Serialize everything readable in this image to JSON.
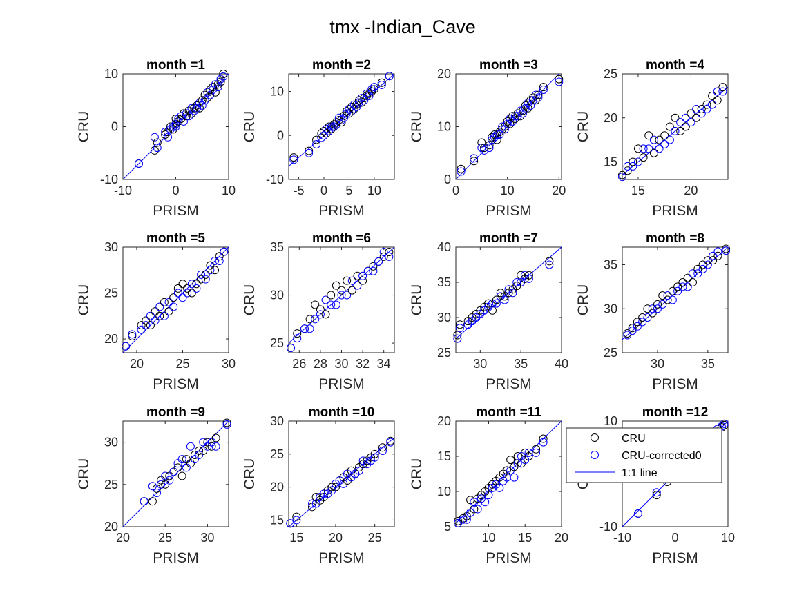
{
  "figure_title": "tmx -Indian_Cave",
  "xlabel": "PRISM",
  "ylabel": "CRU",
  "colors": {
    "cru": "#000000",
    "corrected": "#0000ff",
    "line": "#0000ff",
    "axes": "#262626"
  },
  "legend": {
    "placement": "overlapping month =12 panel, upper left",
    "entries": [
      {
        "label": "CRU",
        "marker": "open-circle",
        "color": "#000000"
      },
      {
        "label": "CRU-corrected0",
        "marker": "open-circle",
        "color": "#0000ff"
      },
      {
        "label": "1:1 line",
        "marker": "line",
        "color": "#0000ff"
      }
    ]
  },
  "chart_data": [
    {
      "type": "scatter",
      "title": "month =1",
      "xlim": [
        -10,
        10
      ],
      "ylim": [
        -10,
        10
      ],
      "xticks": [
        -10,
        0,
        10
      ],
      "yticks": [
        -10,
        0,
        10
      ],
      "x": [
        -7,
        -4,
        -3.5,
        -2,
        -1.5,
        -1,
        -0.5,
        0,
        0,
        0.5,
        1,
        1.5,
        2,
        2.5,
        3,
        3.5,
        4,
        4.5,
        5,
        5.5,
        6,
        6.5,
        7,
        7.5,
        8,
        8.5,
        9
      ],
      "cru": [
        -7,
        -4.5,
        -3,
        -1.5,
        -1,
        0,
        -0.5,
        0.5,
        1.5,
        1,
        1.5,
        2.5,
        2,
        3,
        2.5,
        3.5,
        4,
        3.5,
        5,
        6,
        5.5,
        7,
        7.5,
        6.5,
        8,
        8.5,
        10
      ],
      "corrected": [
        -7,
        -2,
        -4,
        -1,
        -2,
        -0.5,
        0,
        0,
        0.5,
        1.5,
        2,
        1,
        2.5,
        2,
        3.5,
        3,
        3.5,
        4.5,
        4,
        5,
        6.5,
        6,
        7,
        8,
        7.5,
        9,
        9.5
      ]
    },
    {
      "type": "scatter",
      "title": "month =2",
      "xlim": [
        -7,
        14
      ],
      "ylim": [
        -10,
        14
      ],
      "xticks": [
        -5,
        0,
        5,
        10
      ],
      "yticks": [
        -10,
        0,
        10
      ],
      "x": [
        -6,
        -3,
        -1.5,
        -0.5,
        0,
        0.5,
        1,
        1.5,
        2,
        2.5,
        3,
        3.5,
        4,
        4.5,
        5,
        5.5,
        6,
        6.5,
        7,
        7.5,
        8,
        8.5,
        9,
        9.5,
        10,
        11.5,
        13
      ],
      "cru": [
        -5,
        -3.5,
        -1,
        0.5,
        1,
        0.5,
        2,
        1.5,
        2.5,
        3,
        3.5,
        3,
        4.5,
        5.5,
        5,
        6.5,
        6,
        7,
        8,
        7.5,
        8.5,
        9,
        9.5,
        10,
        10.5,
        12,
        13.5
      ],
      "corrected": [
        -5.5,
        -4,
        -2,
        -0.5,
        0,
        1.5,
        1,
        2,
        2,
        2.5,
        4,
        3.5,
        4,
        5,
        6,
        5.5,
        7,
        6.5,
        7.5,
        8.5,
        8,
        9.5,
        9,
        10.5,
        11,
        11.5,
        13.5
      ]
    },
    {
      "type": "scatter",
      "title": "month =3",
      "xlim": [
        0,
        20.5
      ],
      "ylim": [
        0,
        20
      ],
      "xticks": [
        0,
        10,
        20
      ],
      "yticks": [
        0,
        10,
        20
      ],
      "x": [
        1,
        3.5,
        5,
        5.5,
        6.5,
        7,
        7.5,
        8,
        8.5,
        9,
        9.5,
        10,
        10.5,
        11,
        11.5,
        12,
        12.5,
        13,
        13.5,
        14,
        14.5,
        15,
        15.5,
        16,
        17,
        20
      ],
      "cru": [
        2,
        3.5,
        7,
        6,
        6.5,
        8,
        8.5,
        7.5,
        9,
        9.5,
        10,
        11,
        10.5,
        12,
        11.5,
        12.5,
        12,
        13,
        14,
        13.5,
        15,
        15.5,
        15,
        16,
        17.5,
        19
      ],
      "corrected": [
        1.5,
        4,
        6,
        5.5,
        6,
        7.5,
        8,
        8.5,
        8.5,
        10,
        9.5,
        10.5,
        11.5,
        11,
        12,
        12,
        13,
        12.5,
        13.5,
        14.5,
        14,
        15,
        16,
        15.5,
        17,
        18.5
      ]
    },
    {
      "type": "scatter",
      "title": "month =4",
      "xlim": [
        13.5,
        23.5
      ],
      "ylim": [
        13,
        25
      ],
      "xticks": [
        15,
        20
      ],
      "yticks": [
        15,
        20,
        25
      ],
      "x": [
        13.5,
        14,
        14.5,
        15,
        15.5,
        16,
        16.5,
        17,
        17.5,
        18,
        18.5,
        19,
        19.5,
        20,
        20.5,
        21,
        21.5,
        22,
        22.5,
        23
      ],
      "cru": [
        13.5,
        14,
        15,
        16.5,
        15.5,
        18,
        16,
        17.5,
        18,
        19,
        20,
        18.5,
        19,
        20.5,
        20,
        21,
        21.5,
        22.5,
        22,
        23.5
      ],
      "corrected": [
        13.3,
        14.5,
        14.5,
        15,
        16.5,
        16.5,
        17.5,
        16.5,
        17,
        17.5,
        18.5,
        19.5,
        20,
        19.5,
        21,
        20.5,
        21,
        21.5,
        23,
        23
      ]
    },
    {
      "type": "scatter",
      "title": "month =5",
      "xlim": [
        18.5,
        30
      ],
      "ylim": [
        18.5,
        30
      ],
      "xticks": [
        20,
        25,
        30
      ],
      "yticks": [
        20,
        25,
        30
      ],
      "x": [
        18.8,
        19.5,
        20.5,
        21,
        21.5,
        22,
        22.5,
        23,
        23.5,
        24,
        24.5,
        25,
        25.5,
        26,
        26.5,
        27,
        27.5,
        28,
        28.5,
        29,
        29.5
      ],
      "cru": [
        19.2,
        20.3,
        21.5,
        22,
        21.5,
        23,
        22.5,
        24,
        23,
        24.5,
        25.5,
        26,
        25.5,
        25,
        26,
        26.5,
        27,
        28,
        27.5,
        29,
        29.5
      ],
      "corrected": [
        19.2,
        20.5,
        21,
        21.5,
        22.5,
        22,
        23.5,
        22.5,
        24,
        23.5,
        25,
        24.5,
        25,
        26,
        25.5,
        27,
        26.5,
        27.5,
        28.5,
        28.5,
        29.5
      ]
    },
    {
      "type": "scatter",
      "title": "month =6",
      "xlim": [
        25,
        35
      ],
      "ylim": [
        24,
        35
      ],
      "xticks": [
        26,
        28,
        30,
        32,
        34
      ],
      "yticks": [
        25,
        30,
        35
      ],
      "x": [
        25.2,
        25.8,
        26.5,
        27,
        27.5,
        28,
        28.5,
        29,
        29.5,
        30,
        30.5,
        31,
        31.5,
        32,
        32.5,
        33,
        33.5,
        34,
        34.5
      ],
      "cru": [
        24.5,
        26,
        26.5,
        27.5,
        29,
        28.5,
        28,
        30,
        31,
        30.5,
        31.5,
        30.5,
        32,
        31.5,
        32.5,
        33,
        33.5,
        34,
        34.5
      ],
      "corrected": [
        24.5,
        25.5,
        26.5,
        26.5,
        27.5,
        28,
        29.5,
        29,
        29,
        30,
        30,
        31.5,
        31,
        32,
        32.5,
        32.5,
        33.5,
        34.5,
        34
      ]
    },
    {
      "type": "scatter",
      "title": "month =7",
      "xlim": [
        27,
        40
      ],
      "ylim": [
        25,
        40
      ],
      "xticks": [
        30,
        35,
        40
      ],
      "yticks": [
        25,
        30,
        35,
        40
      ],
      "x": [
        27.2,
        27.5,
        28.5,
        29,
        29.5,
        30,
        30.5,
        31,
        31.5,
        32,
        32.5,
        33,
        33.5,
        34,
        34.5,
        35,
        35.5,
        36,
        38.5
      ],
      "cru": [
        27.5,
        29,
        29.5,
        30,
        30.5,
        31,
        31.5,
        32,
        31,
        32.5,
        33.5,
        33,
        33.5,
        34,
        34.5,
        36,
        35.5,
        36,
        38
      ],
      "corrected": [
        27,
        28.5,
        29,
        29.5,
        30,
        30.5,
        31,
        31.5,
        32,
        32,
        33,
        32.5,
        34,
        33.5,
        35,
        35,
        36,
        35.5,
        37.5
      ]
    },
    {
      "type": "scatter",
      "title": "month =8",
      "xlim": [
        26.5,
        37
      ],
      "ylim": [
        25,
        37
      ],
      "xticks": [
        30,
        35
      ],
      "yticks": [
        25,
        30,
        35
      ],
      "x": [
        27,
        27.5,
        28,
        28.5,
        29,
        29.5,
        30,
        30.5,
        31,
        31.5,
        32,
        32.5,
        33,
        33.5,
        34,
        34.5,
        35,
        35.5,
        36,
        36.8
      ],
      "cru": [
        27.2,
        27.8,
        28.5,
        29,
        30,
        29.5,
        30.5,
        31.5,
        31,
        32,
        32.5,
        33,
        33.5,
        33,
        34.5,
        35,
        35.5,
        35.5,
        36,
        36.8
      ],
      "corrected": [
        27,
        27.5,
        28,
        28.5,
        29,
        30,
        30,
        30.5,
        31.5,
        31,
        32,
        32.5,
        32.5,
        34,
        34,
        34.5,
        35,
        36,
        36.5,
        36.6
      ]
    },
    {
      "type": "scatter",
      "title": "month =9",
      "xlim": [
        20,
        32.5
      ],
      "ylim": [
        20,
        32.5
      ],
      "xticks": [
        20,
        25,
        30
      ],
      "yticks": [
        20,
        25,
        30
      ],
      "x": [
        22.5,
        23.5,
        24,
        24.5,
        25,
        25.5,
        26,
        26.5,
        27,
        27.5,
        28,
        28.5,
        29,
        29.5,
        30,
        30.5,
        31,
        32.3
      ],
      "cru": [
        23,
        23,
        24.5,
        25.5,
        25,
        26,
        26.5,
        27,
        26,
        28,
        27.5,
        28.5,
        29,
        29,
        30,
        29.5,
        30.5,
        32.3
      ],
      "corrected": [
        23,
        24.8,
        24,
        25,
        26,
        25.5,
        26.5,
        27.5,
        28,
        27,
        29.5,
        28,
        28.5,
        30,
        29.5,
        30,
        29.5,
        32.1
      ]
    },
    {
      "type": "scatter",
      "title": "month =10",
      "xlim": [
        14,
        27.5
      ],
      "ylim": [
        14,
        30
      ],
      "xticks": [
        15,
        20,
        25
      ],
      "yticks": [
        15,
        20,
        25,
        30
      ],
      "x": [
        14.2,
        15,
        17,
        17.5,
        18,
        18.5,
        19,
        19.5,
        20,
        20.5,
        21,
        21.5,
        22,
        22.5,
        23,
        23.5,
        24,
        24.5,
        25,
        26,
        27
      ],
      "cru": [
        14.5,
        15.5,
        17,
        18.5,
        18,
        18.5,
        19.5,
        20,
        20,
        21,
        21.5,
        21,
        22.5,
        22,
        23,
        23.5,
        24,
        24.5,
        25,
        26,
        27
      ],
      "corrected": [
        14.5,
        15,
        17.5,
        17.5,
        18.5,
        19,
        19,
        19.5,
        20.5,
        21,
        20.5,
        22,
        21.5,
        22,
        22.5,
        24,
        23.5,
        24,
        24.5,
        25.5,
        26.8
      ]
    },
    {
      "type": "scatter",
      "title": "month =11",
      "xlim": [
        5.5,
        20
      ],
      "ylim": [
        5,
        20
      ],
      "xticks": [
        10,
        15,
        20
      ],
      "yticks": [
        5,
        10,
        15,
        20
      ],
      "x": [
        5.8,
        6.5,
        7,
        7.5,
        8,
        8.5,
        9,
        9.5,
        10,
        10.5,
        11,
        11.5,
        12,
        12.5,
        13,
        13.5,
        14,
        14.5,
        15,
        15.5,
        16.5,
        17.5
      ],
      "cru": [
        5.8,
        6.2,
        6.5,
        8.8,
        7.5,
        9,
        9.5,
        10,
        10.5,
        11,
        11.5,
        12,
        12.5,
        13,
        14.5,
        13.5,
        15,
        14,
        15.5,
        15,
        16,
        17.5
      ],
      "corrected": [
        5.5,
        6,
        6,
        7,
        8.5,
        7.5,
        9,
        8.5,
        9.5,
        10.5,
        11,
        10.5,
        11.5,
        12,
        13,
        12,
        14,
        15,
        14.5,
        15.5,
        15.5,
        17
      ]
    },
    {
      "type": "scatter",
      "title": "month =12",
      "xlim": [
        -10,
        10
      ],
      "ylim": [
        -10,
        10
      ],
      "xticks": [
        -10,
        0,
        10
      ],
      "yticks": [
        -10,
        0,
        10
      ],
      "x": [
        -7,
        -3.5,
        -1.5,
        0,
        1,
        2.5,
        4,
        5,
        6.5,
        8,
        8.8,
        9.3
      ],
      "cru": [
        -7.5,
        -4,
        -1.5,
        0.5,
        1.5,
        2.5,
        4.5,
        5.5,
        6.5,
        8,
        8.8,
        9.2
      ],
      "corrected": [
        -7.5,
        -3.5,
        -1,
        0,
        1.5,
        3,
        4,
        5,
        7,
        8.5,
        9,
        9.5
      ]
    }
  ]
}
